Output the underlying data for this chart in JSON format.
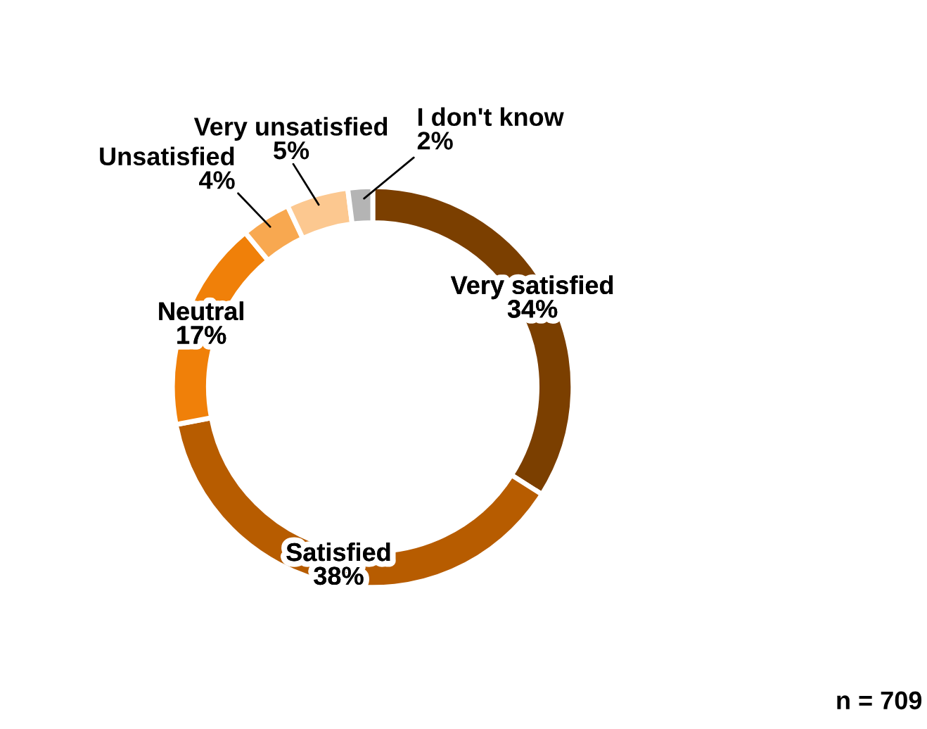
{
  "chart_data": {
    "type": "donut",
    "categories": [
      "Very satisfied",
      "Satisfied",
      "Neutral",
      "Unsatisfied",
      "Very unsatisfied",
      "I don't know"
    ],
    "values": [
      34,
      38,
      17,
      4,
      5,
      2
    ],
    "colors": [
      "#7b3f00",
      "#b75c00",
      "#f08009",
      "#f8a850",
      "#fcc890",
      "#b4b4b4"
    ],
    "value_labels": [
      "34%",
      "38%",
      "17%",
      "4%",
      "5%",
      "2%"
    ],
    "annotations": [
      "n = 709"
    ]
  }
}
